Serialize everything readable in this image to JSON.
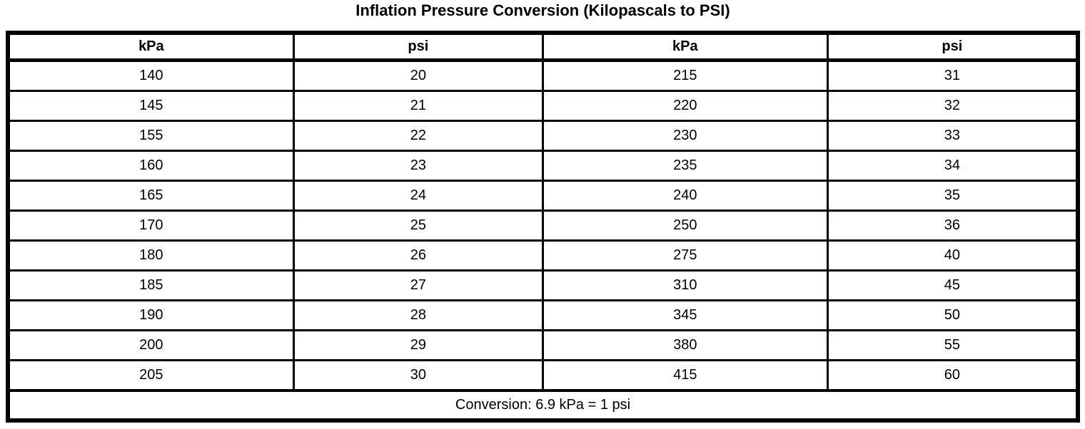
{
  "title": "Inflation Pressure Conversion (Kilopascals to PSI)",
  "table": {
    "headers": [
      "kPa",
      "psi",
      "kPa",
      "psi"
    ],
    "rows": [
      [
        "140",
        "20",
        "215",
        "31"
      ],
      [
        "145",
        "21",
        "220",
        "32"
      ],
      [
        "155",
        "22",
        "230",
        "33"
      ],
      [
        "160",
        "23",
        "235",
        "34"
      ],
      [
        "165",
        "24",
        "240",
        "35"
      ],
      [
        "170",
        "25",
        "250",
        "36"
      ],
      [
        "180",
        "26",
        "275",
        "40"
      ],
      [
        "185",
        "27",
        "310",
        "45"
      ],
      [
        "190",
        "28",
        "345",
        "50"
      ],
      [
        "200",
        "29",
        "380",
        "55"
      ],
      [
        "205",
        "30",
        "415",
        "60"
      ]
    ],
    "footer": "Conversion: 6.9 kPa = 1 psi"
  },
  "colors": {
    "background": "#ffffff",
    "border": "#000000",
    "text": "#000000"
  }
}
